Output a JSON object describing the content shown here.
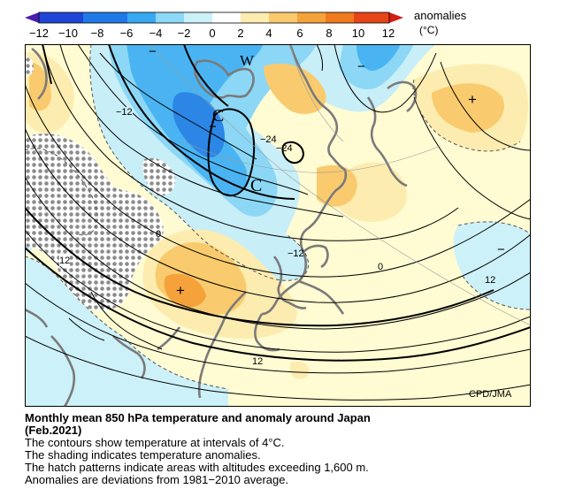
{
  "colorbar": {
    "ticks": [
      "−12",
      "−10",
      "−8",
      "−6",
      "−4",
      "−2",
      "0",
      "2",
      "4",
      "6",
      "8",
      "10",
      "12"
    ],
    "unit_title": "anomalies",
    "unit": "(°C)",
    "colors": [
      "#2a2ad8",
      "#1f6fe6",
      "#3aa5f2",
      "#7fd2f5",
      "#c9eff8",
      "#fffbd2",
      "#fde7a3",
      "#f8c46a",
      "#f39a2c",
      "#ec6a1a",
      "#e23a10"
    ]
  },
  "map": {
    "contour_labels": [
      "−12",
      "−24",
      "−24",
      "0",
      "−12",
      "0",
      "12",
      "12",
      "12"
    ],
    "markers": [
      "W",
      "C",
      "C",
      "−",
      "−",
      "−",
      "−",
      "+",
      "+"
    ],
    "credit": "CPD/JMA"
  },
  "caption": {
    "title": "Monthly mean 850 hPa temperature and anomaly around Japan",
    "subtitle": "(Feb.2021)",
    "lines": [
      "The contours show temperature at intervals of 4°C.",
      "The shading indicates temperature anomalies.",
      "The hatch patterns indicate areas with altitudes exceeding 1,600 m.",
      "Anomalies are deviations from 1981−2010 average."
    ]
  }
}
